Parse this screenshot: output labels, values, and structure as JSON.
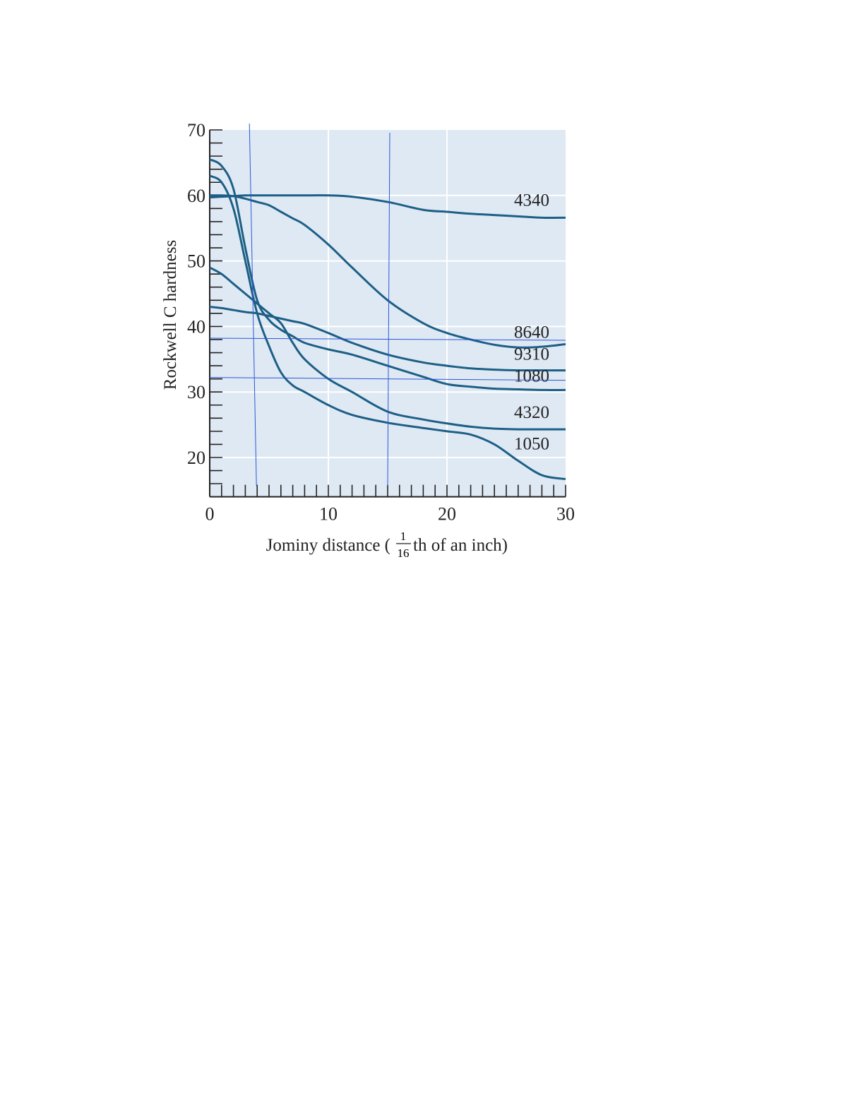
{
  "chart_data": {
    "type": "line",
    "title": "",
    "xlabel": "Jominy distance (1/16 th of an inch)",
    "xlabel_parts": {
      "before": "Jominy distance (",
      "num": "1",
      "den": "16",
      "after": "th of an inch)"
    },
    "ylabel": "Rockwell C hardness",
    "xlim": [
      0,
      30
    ],
    "ylim": [
      14,
      70
    ],
    "xticks": [
      0,
      10,
      20,
      30
    ],
    "yticks": [
      20,
      30,
      40,
      50,
      60,
      70
    ],
    "grid": true,
    "legend": "inline labels at right end of curves",
    "colors": {
      "background": "#dfe9f4",
      "line": "#1d5f86",
      "grid": "#ffffff",
      "annotation": "#2a56d6"
    },
    "x": [
      0,
      1,
      2,
      3,
      4,
      5,
      6,
      7,
      8,
      10,
      12,
      15,
      18,
      20,
      22,
      24,
      26,
      28,
      30
    ],
    "series": [
      {
        "name": "4340",
        "values": [
          59.7,
          59.8,
          59.9,
          60,
          60,
          60,
          60,
          60,
          60,
          60,
          59.8,
          59,
          57.8,
          57.5,
          57.2,
          57,
          56.8,
          56.6,
          56.6
        ]
      },
      {
        "name": "8640",
        "values": [
          60,
          60,
          59.9,
          59.5,
          59,
          58.5,
          57.5,
          56.5,
          55.5,
          52.5,
          49,
          44,
          40.5,
          39,
          38,
          37.2,
          36.8,
          36.9,
          37.3
        ]
      },
      {
        "name": "9310",
        "values": [
          43,
          42.8,
          42.5,
          42.2,
          42,
          41.6,
          41.2,
          40.8,
          40.4,
          39,
          37.5,
          35.7,
          34.5,
          34,
          33.6,
          33.4,
          33.3,
          33.3,
          33.3
        ]
      },
      {
        "name": "1080",
        "values": [
          65.5,
          64.5,
          61,
          52,
          44,
          41,
          39.5,
          38.5,
          37.5,
          36.5,
          35.7,
          34,
          32.3,
          31.2,
          30.8,
          30.5,
          30.4,
          30.3,
          30.3
        ]
      },
      {
        "name": "4320",
        "values": [
          49,
          48,
          46.5,
          45,
          43.5,
          42,
          40.5,
          37.5,
          35,
          32,
          30,
          27,
          25.8,
          25.2,
          24.7,
          24.4,
          24.3,
          24.3,
          24.3
        ]
      },
      {
        "name": "1050",
        "values": [
          63,
          62,
          58,
          50,
          42,
          37,
          33,
          31,
          30,
          28,
          26.5,
          25.3,
          24.5,
          24,
          23.5,
          22,
          19.5,
          17.3,
          16.7
        ]
      }
    ],
    "annotations": {
      "vertical_lines_x": [
        4,
        15
      ],
      "horizontal_lines_y": [
        38,
        32
      ]
    }
  }
}
